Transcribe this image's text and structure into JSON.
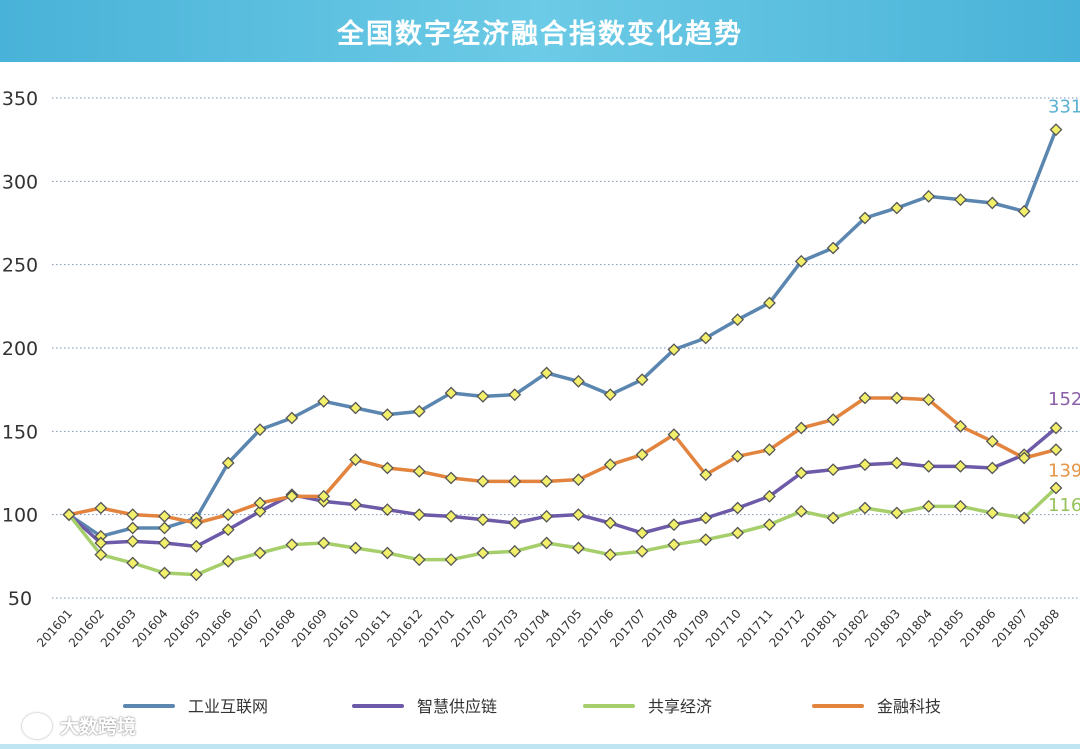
{
  "header": {
    "title": "全国数字经济融合指数变化趋势"
  },
  "watermark": {
    "text": "大数跨境",
    "logo_icon": "brand-logo-icon"
  },
  "chart_data": {
    "type": "line",
    "title": "全国数字经济融合指数变化趋势",
    "xlabel": "",
    "ylabel": "",
    "ylim": [
      50,
      350
    ],
    "yticks": [
      50,
      100,
      150,
      200,
      250,
      300,
      350
    ],
    "grid": true,
    "legend_position": "bottom",
    "categories": [
      "201601",
      "201602",
      "201603",
      "201604",
      "201605",
      "201606",
      "201607",
      "201608",
      "201609",
      "201610",
      "201611",
      "201612",
      "201701",
      "201702",
      "201703",
      "201704",
      "201705",
      "201706",
      "201707",
      "201708",
      "201709",
      "201710",
      "201711",
      "201712",
      "201801",
      "201802",
      "201803",
      "201804",
      "201805",
      "201806",
      "201807",
      "201808"
    ],
    "series": [
      {
        "name": "工业互联网",
        "color": "#5ab1d2",
        "line_color": "#5a86b0",
        "end_label": "331",
        "values": [
          100,
          87,
          92,
          92,
          98,
          131,
          151,
          158,
          168,
          164,
          160,
          162,
          173,
          171,
          172,
          185,
          180,
          172,
          181,
          199,
          206,
          217,
          227,
          252,
          260,
          278,
          284,
          291,
          289,
          287,
          282,
          331
        ]
      },
      {
        "name": "智慧供应链",
        "color": "#8a5fa8",
        "line_color": "#6d5aa8",
        "end_label": "152",
        "values": [
          100,
          83,
          84,
          83,
          81,
          91,
          102,
          112,
          108,
          106,
          103,
          100,
          99,
          97,
          95,
          99,
          100,
          95,
          89,
          94,
          98,
          104,
          111,
          125,
          127,
          130,
          131,
          129,
          129,
          128,
          136,
          152
        ]
      },
      {
        "name": "共享经济",
        "color": "#97c35c",
        "line_color": "#a6cf6c",
        "end_label": "116",
        "values": [
          100,
          76,
          71,
          65,
          64,
          72,
          77,
          82,
          83,
          80,
          77,
          73,
          73,
          77,
          78,
          83,
          80,
          76,
          78,
          82,
          85,
          89,
          94,
          102,
          98,
          104,
          101,
          105,
          105,
          101,
          98,
          116
        ]
      },
      {
        "name": "金融科技",
        "color": "#e69546",
        "line_color": "#e2843e",
        "end_label": "139",
        "values": [
          100,
          104,
          100,
          99,
          95,
          100,
          107,
          111,
          111,
          133,
          128,
          126,
          122,
          120,
          120,
          120,
          121,
          130,
          136,
          148,
          124,
          135,
          139,
          152,
          157,
          170,
          170,
          169,
          153,
          144,
          134,
          139
        ]
      }
    ]
  }
}
